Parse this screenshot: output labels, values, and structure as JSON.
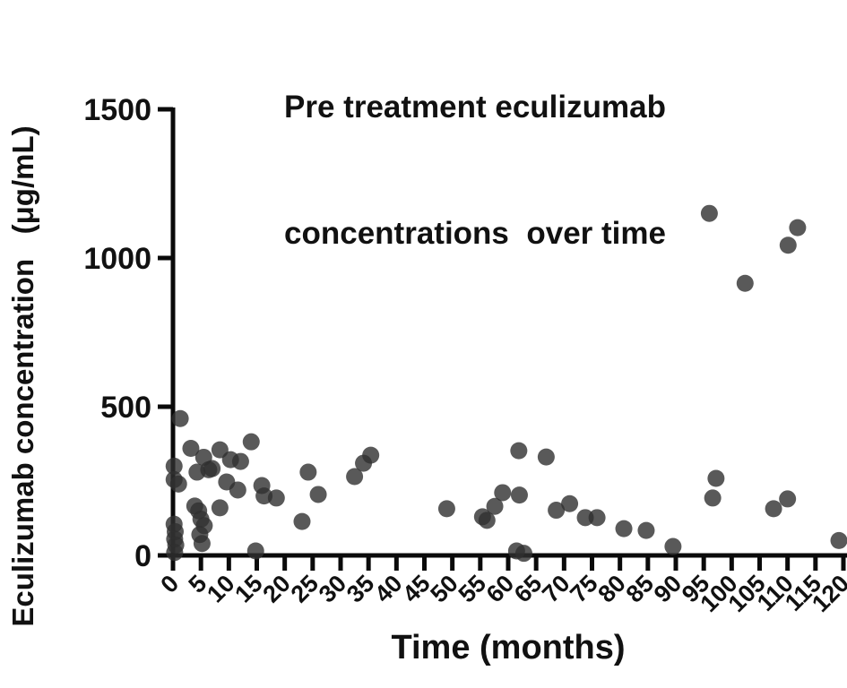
{
  "title": {
    "line1": "Pre treatment eculizumab",
    "line2": "concentrations  over time"
  },
  "axes": {
    "x_label": "Time (months)",
    "y_label": "Eculizumab concentration   (μg/mL)"
  },
  "colors": {
    "point": "#2f2f2f",
    "axis": "#0a0a0a",
    "text": "#111111",
    "background": "#ffffff"
  },
  "chart_data": {
    "type": "scatter",
    "title": "Pre treatment eculizumab concentrations over time",
    "xlabel": "Time (months)",
    "ylabel": "Eculizumab concentration (μg/mL)",
    "xlim": [
      0,
      120
    ],
    "ylim": [
      0,
      1500
    ],
    "x_ticks": [
      0,
      5,
      10,
      15,
      20,
      25,
      30,
      35,
      40,
      45,
      50,
      55,
      60,
      65,
      70,
      75,
      80,
      85,
      90,
      95,
      100,
      105,
      110,
      115,
      120
    ],
    "y_ticks": [
      0,
      500,
      1000,
      1500
    ],
    "grid": false,
    "legend": null,
    "points": [
      [
        0.2,
        300
      ],
      [
        0.2,
        255
      ],
      [
        1.3,
        460
      ],
      [
        1.0,
        240
      ],
      [
        0.2,
        105
      ],
      [
        0.4,
        80
      ],
      [
        0.3,
        55
      ],
      [
        0.5,
        35
      ],
      [
        0.3,
        10
      ],
      [
        3.2,
        360
      ],
      [
        5.5,
        330
      ],
      [
        4.3,
        280
      ],
      [
        6.4,
        288
      ],
      [
        7.0,
        292
      ],
      [
        3.9,
        166
      ],
      [
        4.6,
        150
      ],
      [
        5.0,
        122
      ],
      [
        4.8,
        70
      ],
      [
        5.2,
        40
      ],
      [
        5.6,
        100
      ],
      [
        8.4,
        355
      ],
      [
        8.4,
        160
      ],
      [
        10.3,
        322
      ],
      [
        12.1,
        316
      ],
      [
        9.6,
        247
      ],
      [
        11.6,
        220
      ],
      [
        14.0,
        382
      ],
      [
        14.8,
        15
      ],
      [
        15.9,
        235
      ],
      [
        16.3,
        200
      ],
      [
        18.5,
        193
      ],
      [
        23.1,
        114
      ],
      [
        24.2,
        280
      ],
      [
        26.0,
        205
      ],
      [
        32.5,
        265
      ],
      [
        34.1,
        310
      ],
      [
        35.4,
        337
      ],
      [
        49.0,
        157
      ],
      [
        55.4,
        130
      ],
      [
        56.2,
        118
      ],
      [
        57.6,
        165
      ],
      [
        59.0,
        211
      ],
      [
        62.0,
        203
      ],
      [
        61.5,
        15
      ],
      [
        62.8,
        7
      ],
      [
        61.9,
        352
      ],
      [
        66.8,
        331
      ],
      [
        68.6,
        152
      ],
      [
        71.0,
        174
      ],
      [
        73.8,
        127
      ],
      [
        75.9,
        127
      ],
      [
        80.7,
        90
      ],
      [
        84.7,
        84
      ],
      [
        89.5,
        30
      ],
      [
        96.0,
        1150
      ],
      [
        102.4,
        915
      ],
      [
        110.1,
        1043
      ],
      [
        111.8,
        1102
      ],
      [
        97.2,
        259
      ],
      [
        96.6,
        193
      ],
      [
        107.5,
        157
      ],
      [
        110.0,
        190
      ],
      [
        119.2,
        50
      ]
    ]
  }
}
